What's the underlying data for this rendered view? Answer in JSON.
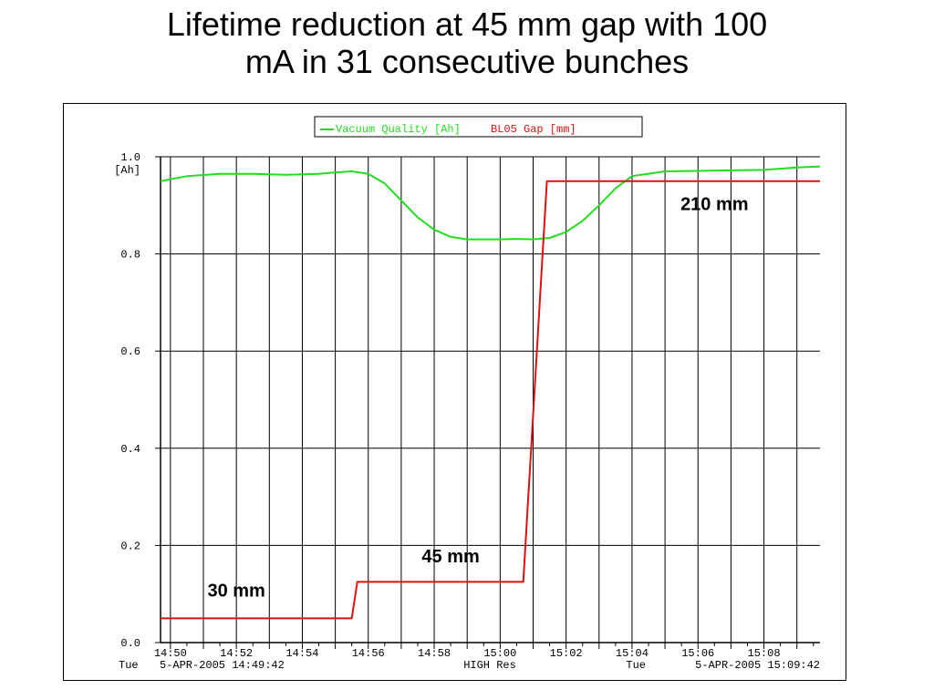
{
  "slide": {
    "title_line1": "Lifetime reduction at 45 mm gap with 100",
    "title_line2": "mA in 31 consecutive bunches"
  },
  "chart_data": {
    "type": "line",
    "title": "Lifetime reduction at 45 mm gap with 100 mA in 31 consecutive bunches",
    "ylabel": "[Ah]",
    "ylim": [
      0.0,
      1.0
    ],
    "y_ticks": [
      "0.0",
      "0.2",
      "0.4",
      "0.6",
      "0.8",
      "1.0"
    ],
    "x_tick_labels": [
      "14:50",
      "14:52",
      "14:54",
      "14:56",
      "14:58",
      "15:00",
      "15:02",
      "15:04",
      "15:06",
      "15:08"
    ],
    "grid": true,
    "legend_position": "top-center",
    "footer": {
      "left_day": "Tue",
      "left_stamp": "5-APR-2005 14:49:42",
      "center": "HIGH Res",
      "right_day": "Tue",
      "right_stamp": "5-APR-2005 15:09:42"
    },
    "series": [
      {
        "name": "Vacuum Quality [Ah]",
        "color": "#22dd22",
        "x": [
          "14:49:42",
          "14:50:30",
          "14:51:30",
          "14:52:30",
          "14:53:30",
          "14:54:30",
          "14:55:00",
          "14:55:30",
          "14:56:00",
          "14:56:30",
          "14:57:00",
          "14:57:30",
          "14:58:00",
          "14:58:30",
          "14:59:00",
          "15:00:00",
          "15:00:30",
          "15:01:00",
          "15:01:30",
          "15:02:00",
          "15:02:30",
          "15:03:00",
          "15:03:30",
          "15:04:00",
          "15:05:00",
          "15:06:00",
          "15:07:00",
          "15:08:00",
          "15:09:00",
          "15:09:42"
        ],
        "values": [
          0.95,
          0.96,
          0.965,
          0.965,
          0.963,
          0.965,
          0.968,
          0.97,
          0.965,
          0.945,
          0.91,
          0.875,
          0.85,
          0.835,
          0.83,
          0.83,
          0.831,
          0.83,
          0.833,
          0.845,
          0.868,
          0.9,
          0.935,
          0.96,
          0.97,
          0.971,
          0.972,
          0.973,
          0.978,
          0.98
        ]
      },
      {
        "name": "BL05 Gap [mm]",
        "color": "#e01010",
        "x": [
          "14:49:42",
          "14:55:30",
          "14:55:40",
          "14:58:00",
          "15:00:42",
          "15:01:25",
          "15:04:00",
          "15:09:42"
        ],
        "values": [
          0.05,
          0.05,
          0.125,
          0.125,
          0.125,
          0.95,
          0.95,
          0.95
        ]
      }
    ],
    "annotations": [
      {
        "text": "30 mm",
        "x": "14:52:00",
        "y": 0.095
      },
      {
        "text": "45 mm",
        "x": "14:58:30",
        "y": 0.165
      },
      {
        "text": "210 mm",
        "x": "15:06:30",
        "y": 0.89
      }
    ]
  }
}
